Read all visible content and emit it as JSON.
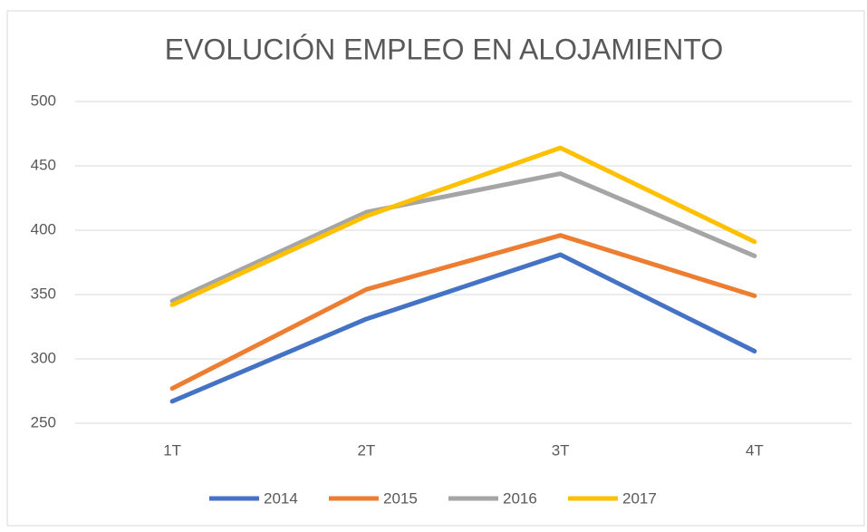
{
  "chart_data": {
    "type": "line",
    "title": "EVOLUCIÓN EMPLEO EN ALOJAMIENTO",
    "categories": [
      "1T",
      "2T",
      "3T",
      "4T"
    ],
    "series": [
      {
        "name": "2014",
        "color": "#4472c4",
        "values": [
          267,
          331,
          381,
          306
        ]
      },
      {
        "name": "2015",
        "color": "#ed7d31",
        "values": [
          277,
          354,
          396,
          349
        ]
      },
      {
        "name": "2016",
        "color": "#a5a5a5",
        "values": [
          345,
          414,
          444,
          380
        ]
      },
      {
        "name": "2017",
        "color": "#ffc000",
        "values": [
          342,
          411,
          464,
          391
        ]
      }
    ],
    "ylim": [
      250,
      500
    ],
    "yticks": [
      250,
      300,
      350,
      400,
      450,
      500
    ],
    "grid": true,
    "legend": "bottom"
  }
}
